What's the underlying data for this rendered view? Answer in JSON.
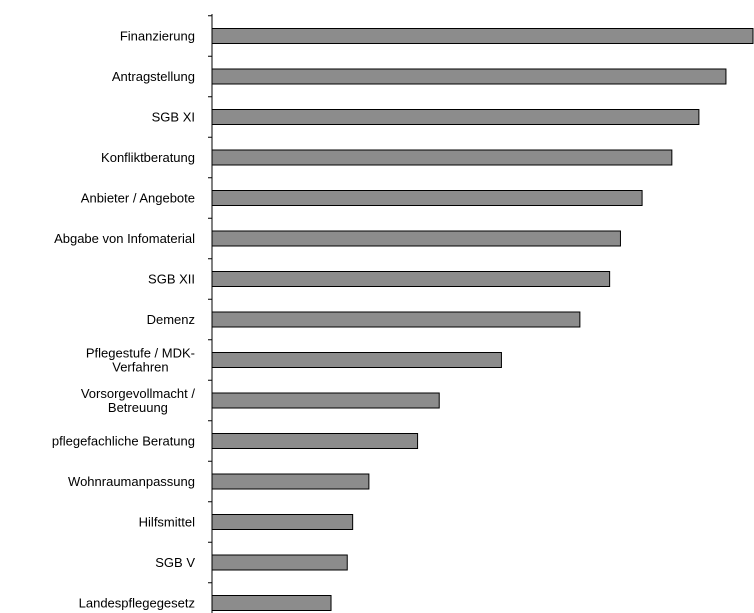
{
  "chart_data": {
    "type": "bar",
    "orientation": "horizontal",
    "title": "",
    "xlabel": "",
    "ylabel": "",
    "grid": false,
    "legend": "none",
    "bar_color": "#8c8c8c",
    "bar_edge_color": "#000000",
    "axis_color": "#000000",
    "xlim": [
      0,
      100
    ],
    "categories": [
      "Finanzierung",
      "Antragstellung",
      "SGB XI",
      "Konfliktberatung",
      "Anbieter / Angebote",
      "Abgabe von Infomaterial",
      "SGB XII",
      "Demenz",
      "Pflegestufe / MDK-Verfahren",
      "Vorsorgevollmacht / Betreuung",
      "pflegefachliche Beratung",
      "Wohnraumanpassung",
      "Hilfsmittel",
      "SGB V",
      "Landespflegegesetz"
    ],
    "category_lines": [
      [
        "Finanzierung"
      ],
      [
        "Antragstellung"
      ],
      [
        "SGB XI"
      ],
      [
        "Konfliktberatung"
      ],
      [
        "Anbieter / Angebote"
      ],
      [
        "Abgabe von Infomaterial"
      ],
      [
        "SGB XII"
      ],
      [
        "Demenz"
      ],
      [
        "Pflegestufe / MDK-",
        "Verfahren"
      ],
      [
        "Vorsorgevollmacht /",
        "Betreuung"
      ],
      [
        "pflegefachliche Beratung"
      ],
      [
        "Wohnraumanpassung"
      ],
      [
        "Hilfsmittel"
      ],
      [
        "SGB V"
      ],
      [
        "Landespflegegesetz"
      ]
    ],
    "values": [
      100,
      95,
      90,
      85,
      79.5,
      75.5,
      73.5,
      68,
      53.5,
      42,
      38,
      29,
      26,
      25,
      22
    ]
  }
}
